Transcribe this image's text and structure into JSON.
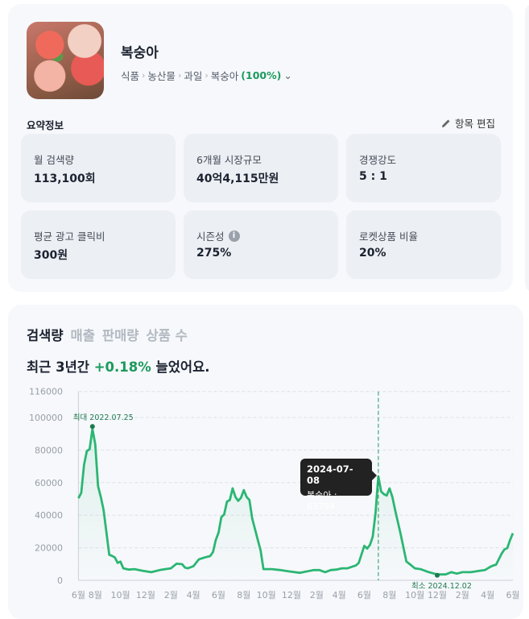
{
  "product": {
    "name": "복숭아",
    "breadcrumb": [
      "식품",
      "농산물",
      "과일",
      "복숭아"
    ],
    "match_pct": "(100%)"
  },
  "summary": {
    "title": "요약정보",
    "edit_label": "항목 편집",
    "tiles": [
      {
        "label": "월 검색량",
        "value": "113,100회"
      },
      {
        "label": "6개월 시장규모",
        "value": "40억4,115만원"
      },
      {
        "label": "경쟁강도",
        "value": "5 : 1"
      },
      {
        "label": "평균 광고 클릭비",
        "value": "300원"
      },
      {
        "label": "시즌성",
        "value": "275%",
        "info_icon": "i"
      },
      {
        "label": "로켓상품 비율",
        "value": "20%"
      }
    ]
  },
  "trend": {
    "tabs": [
      {
        "label": "검색량",
        "active": true
      },
      {
        "label": "매출"
      },
      {
        "label": "판매량"
      },
      {
        "label": "상품 수"
      }
    ],
    "headline_pre": "최근 3년간 ",
    "headline_value": "+0.18%",
    "headline_post": " 늘었어요.",
    "accent": "#2bb673",
    "tooltip": {
      "date": "2024-07-08",
      "text": "복숭아 : 63794"
    }
  },
  "chart_data": {
    "type": "area",
    "ylim": [
      0,
      116000
    ],
    "yticks": [
      0,
      20000,
      40000,
      60000,
      80000,
      100000,
      116000
    ],
    "xticks": [
      [
        "6월",
        "2022-06-20"
      ],
      [
        "8월",
        "2022-08-01"
      ],
      [
        "10월",
        "2022-10-03"
      ],
      [
        "12월",
        "2022-12-05"
      ],
      [
        "2월",
        "2023-02-06"
      ],
      [
        "4월",
        "2023-04-03"
      ],
      [
        "6월",
        "2023-06-05"
      ],
      [
        "8월",
        "2023-08-07"
      ],
      [
        "10월",
        "2023-10-02"
      ],
      [
        "12월",
        "2023-12-04"
      ],
      [
        "2월",
        "2024-02-05"
      ],
      [
        "4월",
        "2024-04-01"
      ],
      [
        "6월",
        "2024-06-03"
      ],
      [
        "8월",
        "2024-08-05"
      ],
      [
        "10월",
        "2024-10-07"
      ],
      [
        "12월",
        "2024-12-02"
      ],
      [
        "2월",
        "2025-02-03"
      ],
      [
        "4월",
        "2025-04-07"
      ],
      [
        "6월",
        "2025-06-09"
      ]
    ],
    "grid": true,
    "max_annotation": {
      "label": "최대 2022.07.25",
      "date": "2022-07-25",
      "value": 93000
    },
    "min_annotation": {
      "label": "최소 2024.12.02",
      "date": "2024-12-02",
      "value": 3600
    },
    "highlight_date": "2024-07-08",
    "series": [
      {
        "name": "복숭아",
        "points": [
          [
            "2022-06-20",
            50400
          ],
          [
            "2022-06-27",
            53700
          ],
          [
            "2022-07-04",
            71000
          ],
          [
            "2022-07-11",
            79300
          ],
          [
            "2022-07-18",
            80600
          ],
          [
            "2022-07-25",
            93000
          ],
          [
            "2022-08-01",
            83500
          ],
          [
            "2022-08-08",
            57800
          ],
          [
            "2022-08-15",
            51000
          ],
          [
            "2022-08-22",
            43000
          ],
          [
            "2022-09-05",
            15700
          ],
          [
            "2022-09-12",
            15000
          ],
          [
            "2022-09-19",
            14000
          ],
          [
            "2022-09-26",
            10700
          ],
          [
            "2022-10-03",
            11500
          ],
          [
            "2022-10-10",
            7400
          ],
          [
            "2022-10-24",
            6600
          ],
          [
            "2022-11-07",
            6900
          ],
          [
            "2022-11-28",
            5800
          ],
          [
            "2022-12-19",
            5000
          ],
          [
            "2023-01-09",
            6300
          ],
          [
            "2023-01-23",
            6900
          ],
          [
            "2023-02-06",
            7400
          ],
          [
            "2023-02-20",
            10200
          ],
          [
            "2023-03-06",
            9900
          ],
          [
            "2023-03-13",
            7800
          ],
          [
            "2023-03-20",
            7400
          ],
          [
            "2023-04-03",
            8600
          ],
          [
            "2023-04-17",
            12900
          ],
          [
            "2023-05-01",
            14000
          ],
          [
            "2023-05-15",
            14900
          ],
          [
            "2023-05-22",
            17400
          ],
          [
            "2023-05-29",
            24800
          ],
          [
            "2023-06-05",
            29400
          ],
          [
            "2023-06-12",
            38800
          ],
          [
            "2023-06-19",
            40500
          ],
          [
            "2023-06-26",
            48300
          ],
          [
            "2023-07-03",
            49300
          ],
          [
            "2023-07-10",
            56500
          ],
          [
            "2023-07-17",
            51200
          ],
          [
            "2023-07-24",
            48800
          ],
          [
            "2023-07-31",
            50700
          ],
          [
            "2023-08-07",
            55400
          ],
          [
            "2023-08-14",
            51200
          ],
          [
            "2023-08-21",
            49300
          ],
          [
            "2023-08-28",
            38000
          ],
          [
            "2023-09-11",
            24800
          ],
          [
            "2023-09-18",
            18200
          ],
          [
            "2023-09-25",
            6900
          ],
          [
            "2023-10-16",
            6900
          ],
          [
            "2023-11-06",
            6300
          ],
          [
            "2023-11-27",
            5500
          ],
          [
            "2023-12-25",
            4600
          ],
          [
            "2024-01-08",
            5300
          ],
          [
            "2024-01-29",
            6300
          ],
          [
            "2024-02-12",
            6300
          ],
          [
            "2024-02-26",
            5000
          ],
          [
            "2024-03-11",
            6300
          ],
          [
            "2024-03-25",
            6600
          ],
          [
            "2024-04-08",
            7400
          ],
          [
            "2024-04-22",
            7400
          ],
          [
            "2024-05-13",
            9100
          ],
          [
            "2024-05-20",
            10700
          ],
          [
            "2024-06-03",
            21200
          ],
          [
            "2024-06-10",
            19500
          ],
          [
            "2024-06-17",
            21800
          ],
          [
            "2024-06-24",
            26800
          ],
          [
            "2024-07-01",
            41300
          ],
          [
            "2024-07-05",
            54500
          ],
          [
            "2024-07-08",
            63794
          ],
          [
            "2024-07-15",
            54500
          ],
          [
            "2024-07-22",
            52900
          ],
          [
            "2024-07-29",
            52100
          ],
          [
            "2024-08-05",
            56500
          ],
          [
            "2024-08-12",
            51200
          ],
          [
            "2024-08-19",
            43000
          ],
          [
            "2024-09-02",
            28100
          ],
          [
            "2024-09-16",
            11600
          ],
          [
            "2024-09-23",
            10200
          ],
          [
            "2024-10-07",
            7400
          ],
          [
            "2024-10-21",
            6900
          ],
          [
            "2024-11-11",
            5000
          ],
          [
            "2024-12-02",
            3600
          ],
          [
            "2024-12-23",
            3600
          ],
          [
            "2025-01-06",
            5000
          ],
          [
            "2025-01-20",
            4100
          ],
          [
            "2025-02-03",
            5000
          ],
          [
            "2025-02-24",
            5000
          ],
          [
            "2025-03-17",
            5800
          ],
          [
            "2025-03-31",
            6300
          ],
          [
            "2025-04-14",
            8300
          ],
          [
            "2025-04-21",
            9100
          ],
          [
            "2025-04-28",
            9600
          ],
          [
            "2025-05-12",
            16500
          ],
          [
            "2025-05-19",
            19000
          ],
          [
            "2025-05-26",
            19800
          ],
          [
            "2025-06-02",
            24800
          ],
          [
            "2025-06-09",
            28900
          ]
        ]
      }
    ]
  }
}
